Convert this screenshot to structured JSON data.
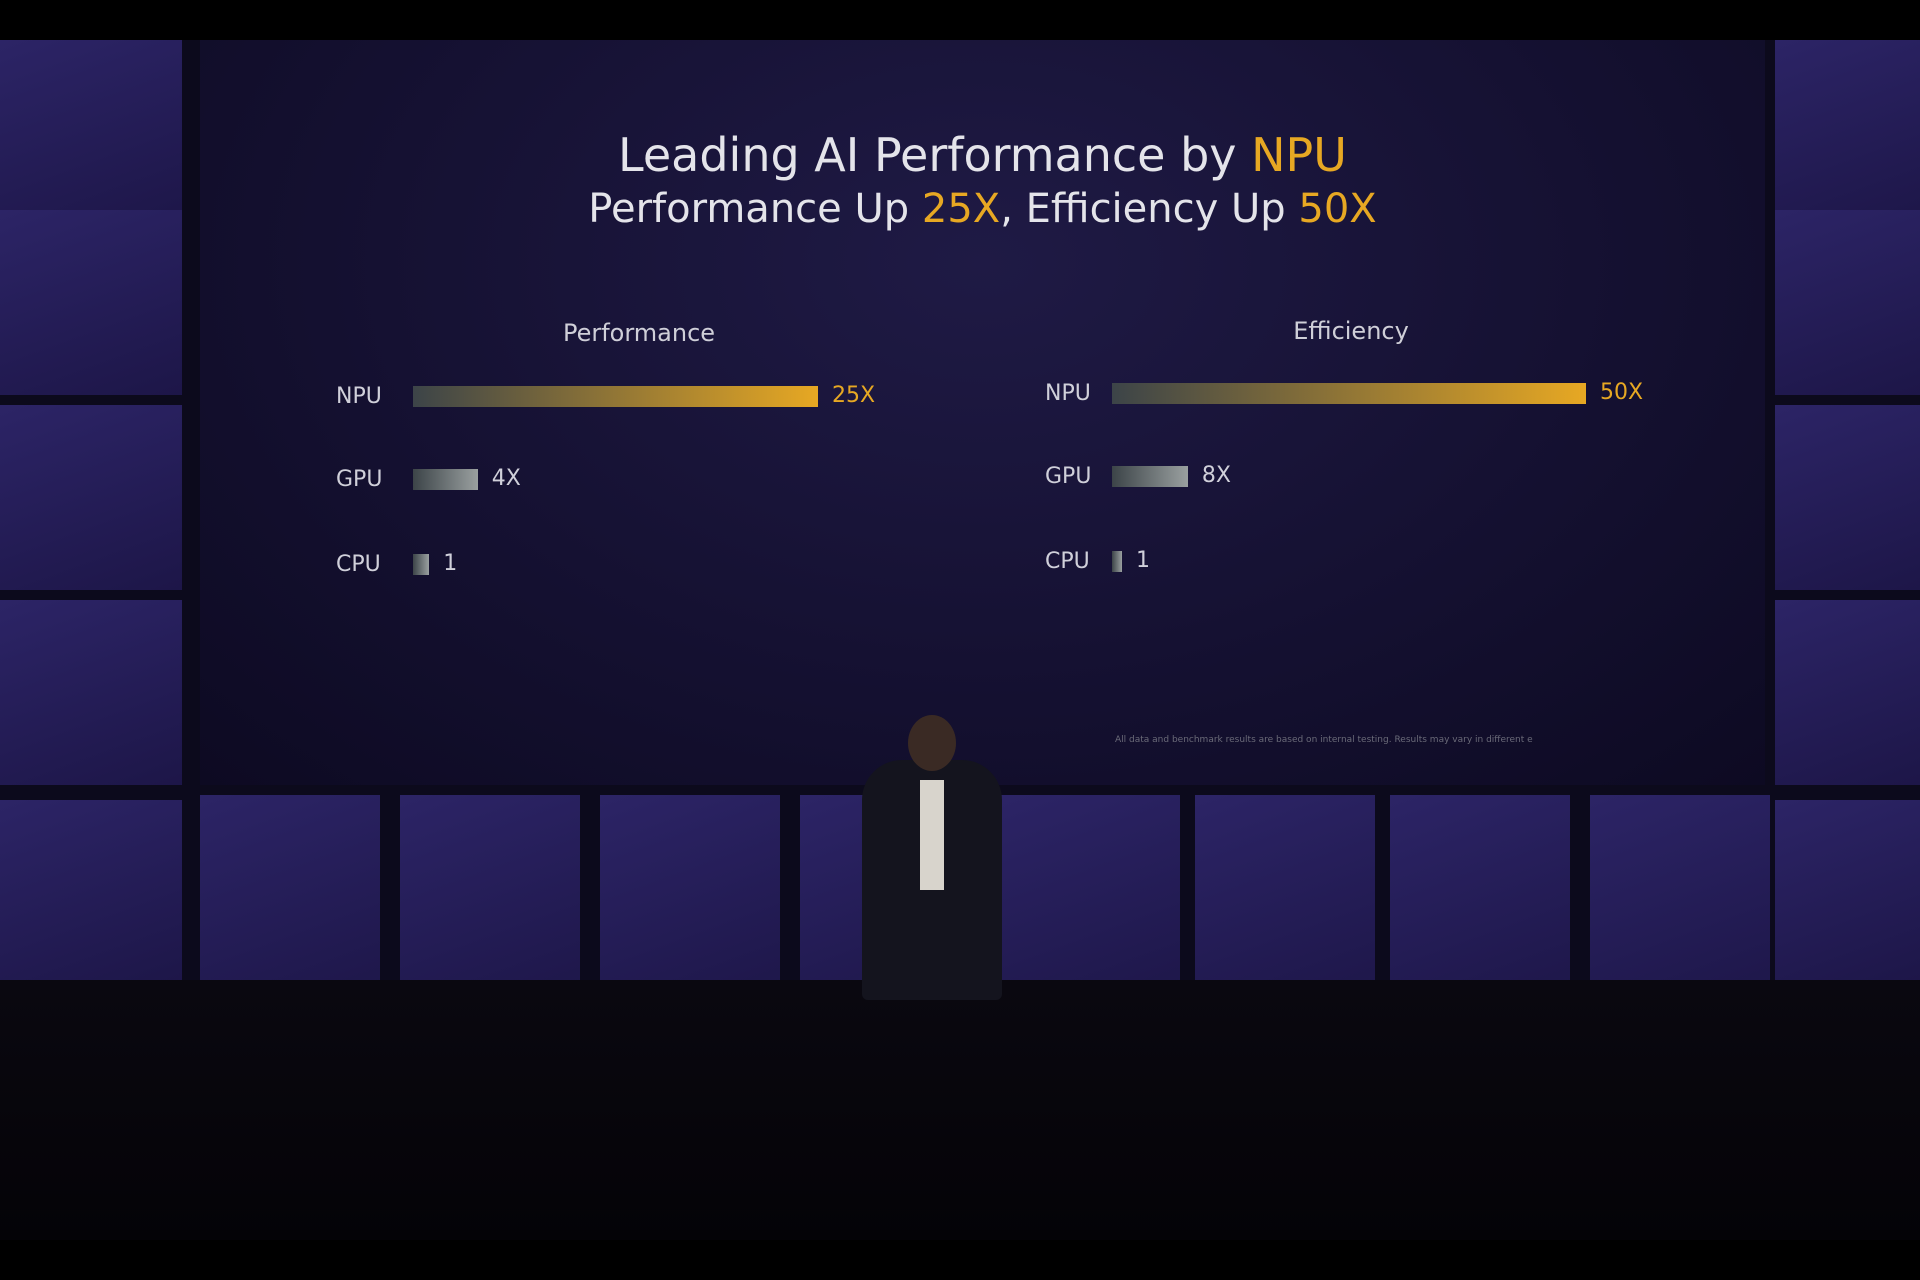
{
  "slide": {
    "title_prefix": "Leading AI Performance by ",
    "title_highlight": "NPU",
    "subtitle_part1": "Performance Up ",
    "subtitle_hl1": "25X",
    "subtitle_part2": ", Efficiency Up ",
    "subtitle_hl2": "50X",
    "footnote": "All data and benchmark results are based on internal testing. Results may vary in different e",
    "accent_color": "#e7a823"
  },
  "chart_data": [
    {
      "type": "bar",
      "orientation": "horizontal",
      "title": "Performance",
      "categories": [
        "NPU",
        "GPU",
        "CPU"
      ],
      "values": [
        25,
        4,
        1
      ],
      "labels": [
        "25X",
        "4X",
        "1"
      ],
      "colors": [
        "#e7a823",
        "#9aa0a0",
        "#9aa0a0"
      ]
    },
    {
      "type": "bar",
      "orientation": "horizontal",
      "title": "Efficiency",
      "categories": [
        "NPU",
        "GPU",
        "CPU"
      ],
      "values": [
        50,
        8,
        1
      ],
      "labels": [
        "50X",
        "8X",
        "1"
      ],
      "colors": [
        "#e7a823",
        "#9aa0a0",
        "#9aa0a0"
      ]
    }
  ]
}
